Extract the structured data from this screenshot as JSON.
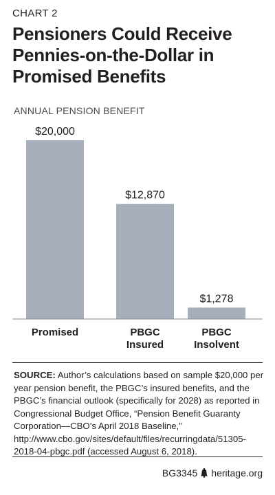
{
  "header": {
    "chart_number": "CHART 2",
    "title": "Pensioners Could Receive Pennies-on-the-Dollar in Promised Benefits"
  },
  "chart_data": {
    "type": "bar",
    "title": "Pensioners Could Receive Pennies-on-the-Dollar in Promised Benefits",
    "ylabel": "ANNUAL PENSION BENEFIT",
    "xlabel": "",
    "categories": [
      [
        "Promised"
      ],
      [
        "PBGC",
        "Insured"
      ],
      [
        "PBGC",
        "Insolvent"
      ]
    ],
    "values": [
      20000,
      12870,
      1278
    ],
    "value_labels": [
      "$20,000",
      "$12,870",
      "$1,278"
    ],
    "ylim": [
      0,
      20000
    ],
    "grid": false,
    "bar_color": "#a7afbd"
  },
  "source": {
    "lead": "SOURCE:",
    "text": " Author’s calculations based on sample $20,000 per year pension benefit, the PBGC’s insured benefits, and the PBGC’s financial outlook (specifically for 2028) as reported in Congressional Budget Office, “Pension Benefit Guaranty Corporation—CBO’s April 2018 Baseline,” http://www.cbo.gov/sites/default/files/recurringdata/51305-2018-04-pbgc.pdf (accessed August 6, 2018)."
  },
  "footer": {
    "code": "BG3345",
    "site": "heritage.org",
    "logo_icon": "liberty-bell-icon"
  }
}
